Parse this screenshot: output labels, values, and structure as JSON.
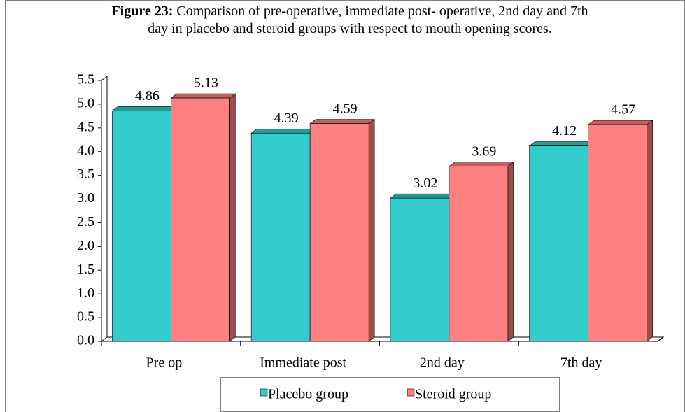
{
  "chart_data": {
    "type": "bar3d",
    "figure_label": "Figure 23:",
    "title": "Comparison of pre-operative, immediate post- operative, 2nd day and 7th day in placebo and steroid groups with respect to mouth opening scores.",
    "categories": [
      "Pre op",
      "Immediate post",
      "2nd day",
      "7th day"
    ],
    "series": [
      {
        "name": "Placebo group",
        "color": "#33cccc",
        "values": [
          4.86,
          4.39,
          3.02,
          4.12
        ]
      },
      {
        "name": "Steroid group",
        "color": "#ff8080",
        "values": [
          5.13,
          4.59,
          3.69,
          4.57
        ]
      }
    ],
    "ylim": [
      0,
      5.5
    ],
    "yticks": [
      {
        "value": 0,
        "label": "0.0"
      },
      0.5,
      {
        "value": 1,
        "label": "1.0"
      },
      1.5,
      {
        "value": 2,
        "label": "2.0"
      },
      2.5,
      {
        "value": 3,
        "label": "3.0"
      },
      3.5,
      {
        "value": 4,
        "label": "4.0"
      },
      4.5,
      {
        "value": 5,
        "label": "5.0"
      },
      5.5
    ]
  }
}
